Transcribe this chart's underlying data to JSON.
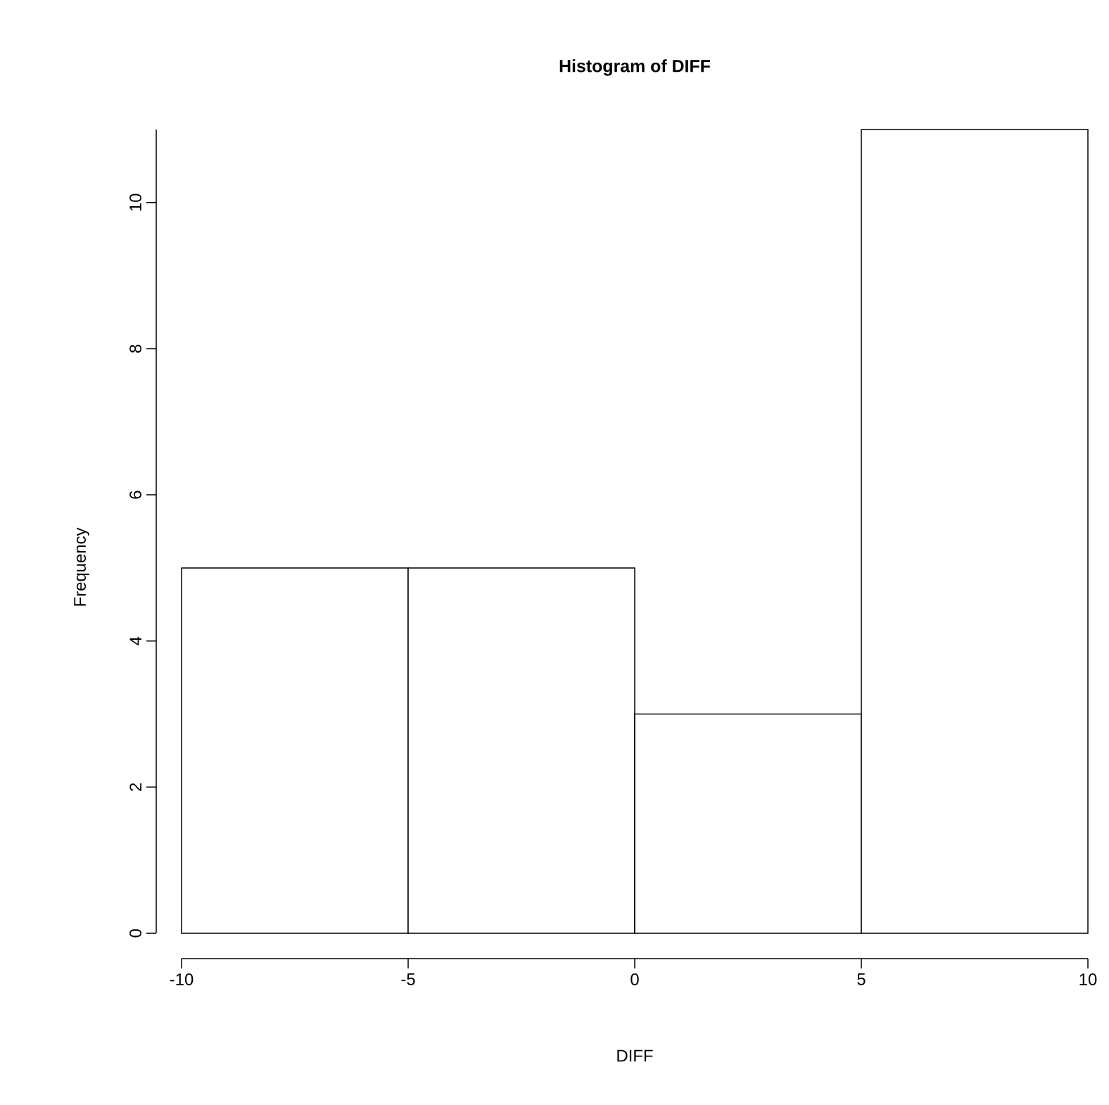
{
  "chart_data": {
    "type": "histogram",
    "title": "Histogram of DIFF",
    "xlabel": "DIFF",
    "ylabel": "Frequency",
    "bins": [
      -10,
      -5,
      0,
      5,
      10
    ],
    "values": [
      5,
      5,
      3,
      11
    ],
    "color": "#ffffff",
    "xlim": [
      -10,
      10
    ],
    "xticks": [
      -10,
      -5,
      0,
      5,
      10
    ],
    "ylim": [
      0,
      11
    ],
    "yticks": [
      0,
      2,
      4,
      6,
      8,
      10
    ]
  }
}
